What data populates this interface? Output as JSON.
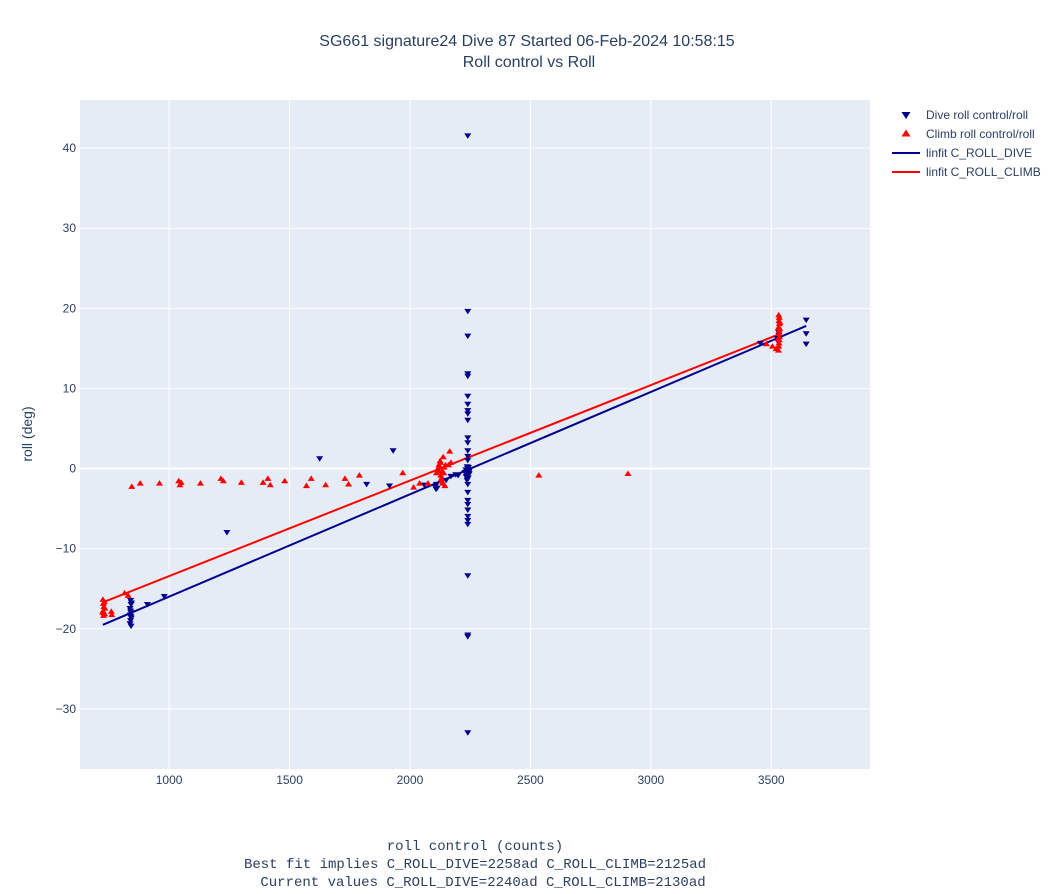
{
  "chart_data": {
    "type": "scatter",
    "title": "SG661 signature24 Dive 87 Started 06-Feb-2024 10:58:15",
    "subtitle": "Roll control vs Roll",
    "xlabel": "roll control (counts)",
    "xlabel_notes": [
      "Best fit implies C_ROLL_DIVE=2258ad C_ROLL_CLIMB=2125ad",
      "Current values C_ROLL_DIVE=2240ad C_ROLL_CLIMB=2130ad"
    ],
    "ylabel": "roll (deg)",
    "xlim": [
      630,
      3910
    ],
    "ylim": [
      -37.5,
      46
    ],
    "xticks": [
      1000,
      1500,
      2000,
      2500,
      3000,
      3500
    ],
    "yticks": [
      -30,
      -20,
      -10,
      0,
      10,
      20,
      30,
      40
    ],
    "grid": true,
    "legend_position": "top-right",
    "colors": {
      "plot_bg": "#e5ecf6",
      "grid": "#ffffff",
      "dive": "#00008b",
      "climb": "#ff0000",
      "text": "#2a3f5f"
    },
    "series": [
      {
        "name": "Dive roll control/roll",
        "kind": "markers",
        "marker": "triangle-down",
        "color": "#00008b",
        "points": [
          [
            840,
            -16.5
          ],
          [
            842,
            -17.0
          ],
          [
            838,
            -17.5
          ],
          [
            841,
            -18.0
          ],
          [
            839,
            -18.3
          ],
          [
            843,
            -18.7
          ],
          [
            840,
            -19.0
          ],
          [
            838,
            -19.4
          ],
          [
            842,
            -19.7
          ],
          [
            840,
            -17.8
          ],
          [
            841,
            -18.5
          ],
          [
            844,
            -16.8
          ],
          [
            910,
            -17.0
          ],
          [
            980,
            -16.0
          ],
          [
            1240,
            -8.0
          ],
          [
            1625,
            1.2
          ],
          [
            1820,
            -2.0
          ],
          [
            1915,
            -2.2
          ],
          [
            1930,
            2.2
          ],
          [
            2060,
            -2.1
          ],
          [
            2105,
            -2.3
          ],
          [
            2108,
            -2.6
          ],
          [
            2110,
            -2.0
          ],
          [
            2112,
            -2.5
          ],
          [
            2150,
            -1.5
          ],
          [
            2170,
            -1.0
          ],
          [
            2190,
            -0.8
          ],
          [
            2200,
            -0.9
          ],
          [
            2228,
            -0.5
          ],
          [
            2232,
            -0.2
          ],
          [
            2235,
            -1.0
          ],
          [
            2238,
            0.2
          ],
          [
            2236,
            -0.8
          ],
          [
            2240,
            -0.3
          ],
          [
            2242,
            -1.2
          ],
          [
            2239,
            0.0
          ],
          [
            2244,
            -0.6
          ],
          [
            2241,
            -0.9
          ],
          [
            2245,
            -0.4
          ],
          [
            2237,
            -1.5
          ],
          [
            2243,
            0.1
          ],
          [
            2246,
            -0.7
          ],
          [
            2234,
            -1.1
          ],
          [
            2247,
            -0.2
          ],
          [
            2240,
            41.5
          ],
          [
            2240,
            19.6
          ],
          [
            2240,
            16.5
          ],
          [
            2240,
            11.8
          ],
          [
            2240,
            11.5
          ],
          [
            2240,
            9.0
          ],
          [
            2240,
            8.0
          ],
          [
            2240,
            7.2
          ],
          [
            2240,
            6.8
          ],
          [
            2240,
            6.0
          ],
          [
            2240,
            3.8
          ],
          [
            2240,
            3.2
          ],
          [
            2240,
            2.2
          ],
          [
            2240,
            1.5
          ],
          [
            2240,
            1.0
          ],
          [
            2240,
            -2.0
          ],
          [
            2240,
            -3.0
          ],
          [
            2240,
            -4.0
          ],
          [
            2240,
            -4.5
          ],
          [
            2240,
            -5.2
          ],
          [
            2240,
            -6.0
          ],
          [
            2240,
            -6.5
          ],
          [
            2240,
            -7.0
          ],
          [
            2240,
            -13.4
          ],
          [
            2240,
            -20.8
          ],
          [
            2240,
            -21.0
          ],
          [
            2240,
            -33.0
          ],
          [
            3455,
            15.6
          ],
          [
            3525,
            16.2
          ],
          [
            3528,
            15.8
          ],
          [
            3532,
            16.6
          ],
          [
            3530,
            17.0
          ],
          [
            3645,
            18.5
          ],
          [
            3645,
            16.8
          ],
          [
            3645,
            15.5
          ]
        ]
      },
      {
        "name": "Climb roll control/roll",
        "kind": "markers",
        "marker": "triangle-up",
        "color": "#ff0000",
        "points": [
          [
            725,
            -16.3
          ],
          [
            727,
            -16.8
          ],
          [
            729,
            -17.2
          ],
          [
            726,
            -17.7
          ],
          [
            730,
            -18.0
          ],
          [
            728,
            -18.3
          ],
          [
            731,
            -16.6
          ],
          [
            733,
            -17.4
          ],
          [
            724,
            -17.9
          ],
          [
            732,
            -18.1
          ],
          [
            760,
            -17.8
          ],
          [
            762,
            -18.2
          ],
          [
            815,
            -15.5
          ],
          [
            830,
            -15.8
          ],
          [
            845,
            -2.2
          ],
          [
            880,
            -1.8
          ],
          [
            960,
            -1.8
          ],
          [
            1040,
            -1.5
          ],
          [
            1045,
            -2.0
          ],
          [
            1050,
            -1.7
          ],
          [
            1130,
            -1.8
          ],
          [
            1215,
            -1.2
          ],
          [
            1225,
            -1.5
          ],
          [
            1300,
            -1.7
          ],
          [
            1390,
            -1.7
          ],
          [
            1410,
            -1.2
          ],
          [
            1420,
            -2.0
          ],
          [
            1480,
            -1.5
          ],
          [
            1570,
            -2.1
          ],
          [
            1590,
            -1.2
          ],
          [
            1650,
            -2.0
          ],
          [
            1730,
            -1.2
          ],
          [
            1745,
            -1.9
          ],
          [
            1790,
            -0.8
          ],
          [
            1970,
            -0.5
          ],
          [
            2015,
            -2.3
          ],
          [
            2040,
            -1.8
          ],
          [
            2075,
            -1.8
          ],
          [
            2110,
            -0.5
          ],
          [
            2115,
            0.0
          ],
          [
            2120,
            0.5
          ],
          [
            2125,
            1.0
          ],
          [
            2118,
            -0.2
          ],
          [
            2122,
            0.3
          ],
          [
            2128,
            -0.8
          ],
          [
            2130,
            -1.2
          ],
          [
            2127,
            0.8
          ],
          [
            2132,
            -1.5
          ],
          [
            2135,
            -1.8
          ],
          [
            2138,
            1.5
          ],
          [
            2140,
            -0.5
          ],
          [
            2145,
            -2.1
          ],
          [
            2142,
            0.2
          ],
          [
            2133,
            -0.3
          ],
          [
            2148,
            0.5
          ],
          [
            2160,
            0.5
          ],
          [
            2165,
            2.2
          ],
          [
            2170,
            0.8
          ],
          [
            2535,
            -0.8
          ],
          [
            2905,
            -0.6
          ],
          [
            3480,
            15.6
          ],
          [
            3505,
            15.3
          ],
          [
            3520,
            15.0
          ],
          [
            3530,
            14.8
          ],
          [
            3531,
            15.3
          ],
          [
            3532,
            15.7
          ],
          [
            3533,
            16.1
          ],
          [
            3534,
            16.5
          ],
          [
            3532,
            16.9
          ],
          [
            3533,
            17.3
          ],
          [
            3531,
            17.7
          ],
          [
            3534,
            18.1
          ],
          [
            3532,
            18.5
          ],
          [
            3533,
            18.9
          ],
          [
            3531,
            19.2
          ],
          [
            3535,
            17.5
          ],
          [
            3530,
            16.3
          ],
          [
            3536,
            18.3
          ]
        ]
      },
      {
        "name": "linfit C_ROLL_DIVE",
        "kind": "line",
        "color": "#00008b",
        "points": [
          [
            725,
            -19.5
          ],
          [
            3645,
            17.8
          ]
        ]
      },
      {
        "name": "linfit C_ROLL_CLIMB",
        "kind": "line",
        "color": "#ff0000",
        "points": [
          [
            725,
            -16.7
          ],
          [
            3536,
            16.8
          ]
        ]
      }
    ]
  }
}
